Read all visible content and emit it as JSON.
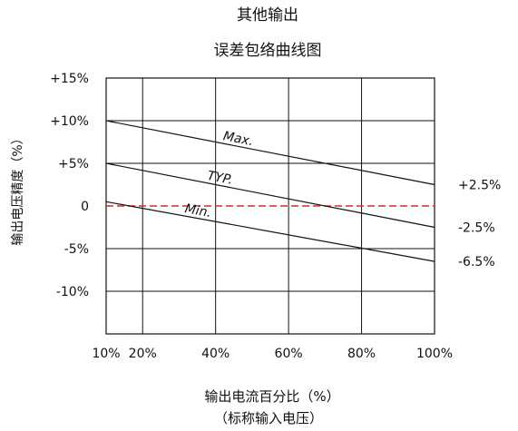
{
  "chart_data": {
    "type": "line",
    "title": "其他输出",
    "subtitle": "误差包络曲线图",
    "xlabel": "输出电流百分比（%）",
    "xlabel_note": "（标称输入电压）",
    "ylabel": "输出电压精度（%）",
    "xlim": [
      10,
      100
    ],
    "ylim": [
      -15,
      15
    ],
    "grid": true,
    "x_tick_labels": [
      "10%",
      "20%",
      "40%",
      "60%",
      "80%",
      "100%"
    ],
    "x_tick_values": [
      10,
      20,
      40,
      60,
      80,
      100
    ],
    "y_tick_labels": [
      "+15%",
      "+10%",
      "+5%",
      "0",
      "-5%",
      "-10%"
    ],
    "y_tick_values": [
      15,
      10,
      5,
      0,
      -5,
      -10
    ],
    "x": [
      10,
      100
    ],
    "series": [
      {
        "name": "Max.",
        "values": [
          10,
          2.5
        ],
        "color": "#111111",
        "end_label": "+2.5%"
      },
      {
        "name": "TYP.",
        "values": [
          5,
          -2.5
        ],
        "color": "#111111",
        "end_label": "-2.5%"
      },
      {
        "name": "Min.",
        "values": [
          0.5,
          -6.5
        ],
        "color": "#111111",
        "end_label": "-6.5%"
      }
    ],
    "reference_line": {
      "value": 0,
      "color": "#d42a2a",
      "style": "dashed"
    }
  }
}
